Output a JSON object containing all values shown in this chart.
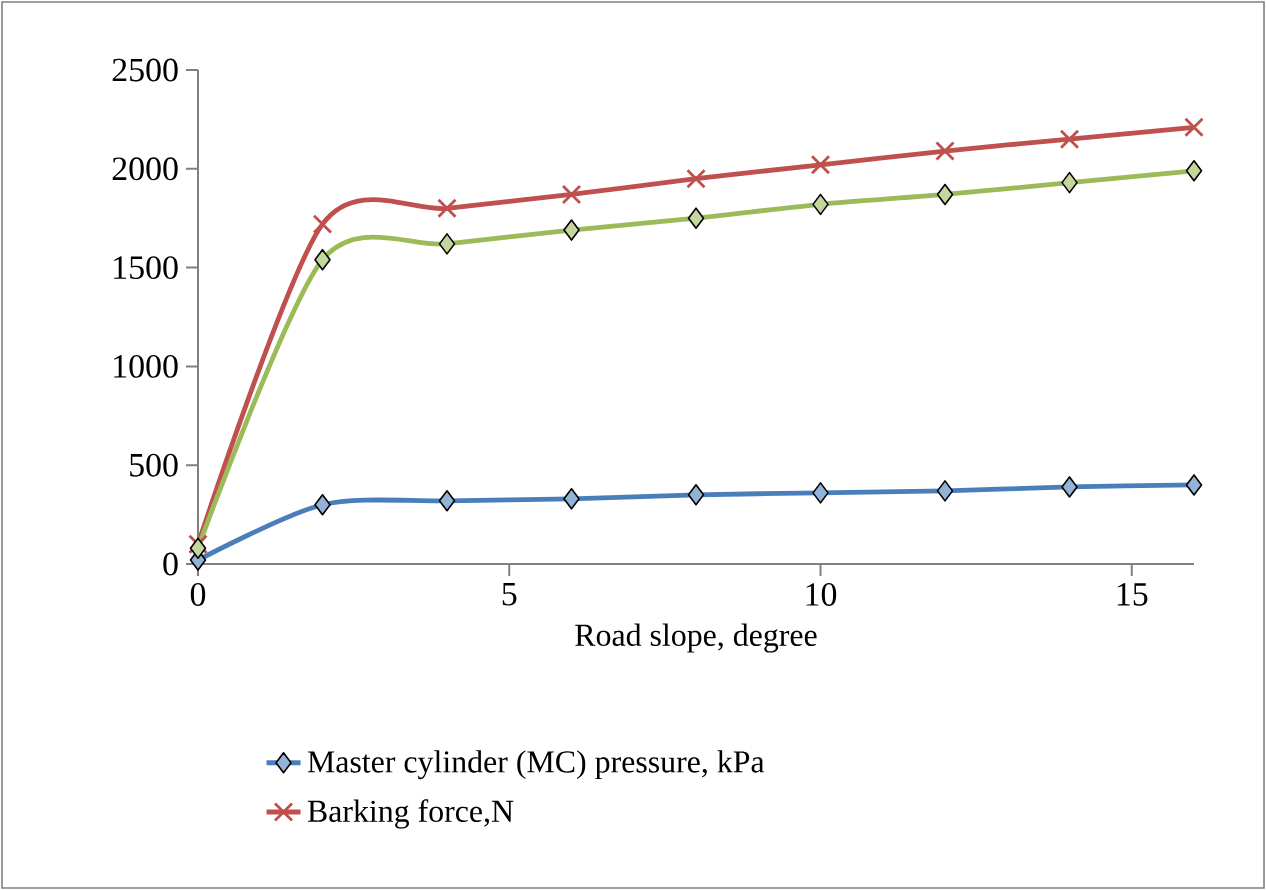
{
  "chart_data": {
    "type": "line",
    "xlabel": "Road slope, degree",
    "x": [
      0,
      2,
      4,
      6,
      8,
      10,
      12,
      14,
      16
    ],
    "series": [
      {
        "name": "Master cylinder (MC) pressure, kPa",
        "color": "#4a7ebb",
        "marker": "diamond",
        "values": [
          20,
          300,
          320,
          330,
          350,
          360,
          370,
          390,
          400
        ]
      },
      {
        "name": "Barking force,N",
        "color": "#c0504d",
        "marker": "cross",
        "values": [
          100,
          1720,
          1800,
          1870,
          1950,
          2020,
          2090,
          2150,
          2210
        ]
      },
      {
        "color": "#9bbb59",
        "marker": "diamond",
        "values": [
          80,
          1540,
          1620,
          1690,
          1750,
          1820,
          1870,
          1930,
          1990
        ]
      }
    ],
    "xlim": [
      0,
      16
    ],
    "xticks": [
      0,
      5,
      10,
      15
    ],
    "ylim": [
      0,
      2500
    ],
    "yticks": [
      0,
      500,
      1000,
      1500,
      2000,
      2500
    ],
    "grid": false,
    "legend": "bottom",
    "line_style": "solid"
  }
}
